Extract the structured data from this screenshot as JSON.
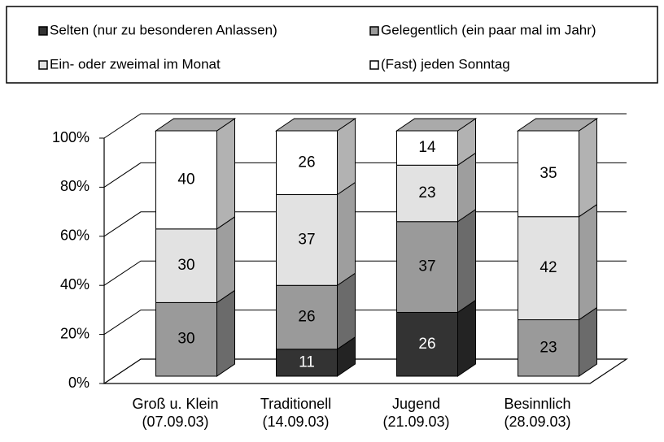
{
  "chart_data": {
    "type": "stacked_bar_3d",
    "categories": [
      "Groß u. Klein\n(07.09.03)",
      "Traditionell\n(14.09.03)",
      "Jugend\n(21.09.03)",
      "Besinnlich\n(28.09.03)"
    ],
    "series": [
      {
        "name": "Selten (nur zu besonderen Anlassen)",
        "color": "#333333",
        "values": [
          0,
          11,
          26,
          0
        ]
      },
      {
        "name": "Gelegentlich (ein paar mal im Jahr)",
        "color": "#9a9a9a",
        "values": [
          30,
          26,
          37,
          23
        ]
      },
      {
        "name": "Ein- oder zweimal im Monat",
        "color": "#e2e2e2",
        "values": [
          30,
          37,
          23,
          42
        ]
      },
      {
        "name": "(Fast) jeden Sonntag",
        "color": "#ffffff",
        "values": [
          40,
          26,
          14,
          35
        ]
      }
    ],
    "ylim": [
      0,
      100
    ],
    "yticks": [
      {
        "value": 0,
        "label": "0%"
      },
      {
        "value": 20,
        "label": "20%"
      },
      {
        "value": 40,
        "label": "40%"
      },
      {
        "value": 60,
        "label": "60%"
      },
      {
        "value": 80,
        "label": "80%"
      },
      {
        "value": 100,
        "label": "100%"
      }
    ],
    "grid": true
  }
}
